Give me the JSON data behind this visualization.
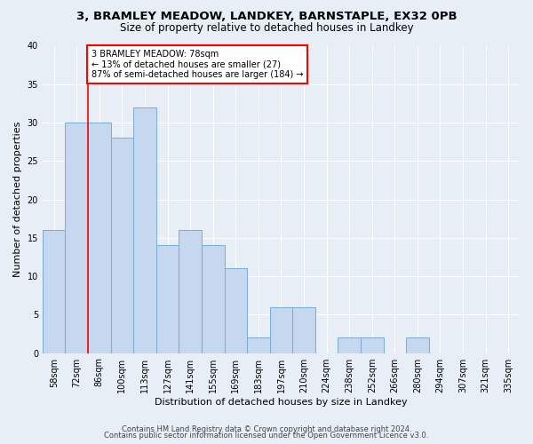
{
  "title_line1": "3, BRAMLEY MEADOW, LANDKEY, BARNSTAPLE, EX32 0PB",
  "title_line2": "Size of property relative to detached houses in Landkey",
  "xlabel": "Distribution of detached houses by size in Landkey",
  "ylabel": "Number of detached properties",
  "categories": [
    "58sqm",
    "72sqm",
    "86sqm",
    "100sqm",
    "113sqm",
    "127sqm",
    "141sqm",
    "155sqm",
    "169sqm",
    "183sqm",
    "197sqm",
    "210sqm",
    "224sqm",
    "238sqm",
    "252sqm",
    "266sqm",
    "280sqm",
    "294sqm",
    "307sqm",
    "321sqm",
    "335sqm"
  ],
  "values": [
    16,
    30,
    30,
    28,
    32,
    14,
    16,
    14,
    11,
    2,
    6,
    6,
    0,
    2,
    2,
    0,
    2,
    0,
    0,
    0,
    0
  ],
  "bar_color": "#c5d8f0",
  "bar_edge_color": "#7aadd4",
  "bar_width": 1.0,
  "red_line_x": 1.5,
  "annotation_text": "3 BRAMLEY MEADOW: 78sqm\n← 13% of detached houses are smaller (27)\n87% of semi-detached houses are larger (184) →",
  "annotation_box_color": "white",
  "annotation_box_edge_color": "red",
  "ylim": [
    0,
    40
  ],
  "yticks": [
    0,
    5,
    10,
    15,
    20,
    25,
    30,
    35,
    40
  ],
  "footer_line1": "Contains HM Land Registry data © Crown copyright and database right 2024.",
  "footer_line2": "Contains public sector information licensed under the Open Government Licence v3.0.",
  "background_color": "#e8eef5",
  "plot_bg_color": "#e8eef5",
  "grid_color": "#ffffff",
  "title_fontsize": 9.5,
  "subtitle_fontsize": 8.5,
  "axis_label_fontsize": 8,
  "tick_fontsize": 7,
  "annotation_fontsize": 7,
  "footer_fontsize": 6
}
